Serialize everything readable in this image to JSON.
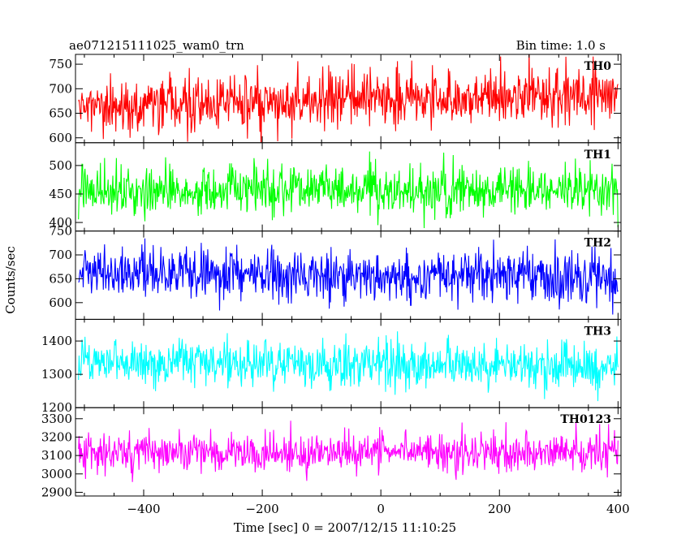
{
  "header": {
    "title": "ae071215111025_wam0_trn",
    "bin_time": "Bin time: 1.0 s"
  },
  "chart_data": {
    "type": "line",
    "xlabel": "Time [sec] 0 = 2007/12/15 11:10:25",
    "ylabel": "Counts/sec",
    "xlim": [
      -515,
      405
    ],
    "x_ticks": [
      -400,
      -200,
      0,
      200,
      400
    ],
    "x_tick_labels": [
      "−400",
      "−200",
      "0",
      "200",
      "400"
    ],
    "bin_seconds": 1.0,
    "x_start": -510,
    "x_end": 400,
    "panels": [
      {
        "name": "TH0",
        "color": "#ff0000",
        "ylim": [
          590,
          770
        ],
        "y_ticks": [
          600,
          650,
          700,
          750
        ],
        "y_tick_labels": [
          "600",
          "650",
          "700",
          "750"
        ],
        "approx_mean": {
          "start": 662,
          "end": 692
        },
        "approx_noise_sigma": 27
      },
      {
        "name": "TH1",
        "color": "#00ff00",
        "ylim": [
          385,
          540
        ],
        "y_ticks": [
          400,
          450,
          500
        ],
        "y_tick_labels": [
          "400",
          "450",
          "500"
        ],
        "approx_mean": {
          "start": 455,
          "end": 456
        },
        "approx_noise_sigma": 22
      },
      {
        "name": "TH2",
        "color": "#0000ff",
        "ylim": [
          565,
          750
        ],
        "y_ticks": [
          600,
          650,
          700,
          750
        ],
        "y_tick_labels": [
          "600",
          "650",
          "700",
          "750"
        ],
        "approx_mean": {
          "start": 662,
          "end": 652
        },
        "approx_noise_sigma": 27
      },
      {
        "name": "TH3",
        "color": "#00ffff",
        "ylim": [
          1200,
          1465
        ],
        "y_ticks": [
          1200,
          1300,
          1400
        ],
        "y_tick_labels": [
          "1200",
          "1300",
          "1400"
        ],
        "approx_mean": {
          "start": 1335,
          "end": 1325
        },
        "approx_noise_sigma": 36
      },
      {
        "name": "TH0123",
        "color": "#ff00ff",
        "ylim": [
          2880,
          3360
        ],
        "y_ticks": [
          2900,
          3000,
          3100,
          3200,
          3300
        ],
        "y_tick_labels": [
          "2900",
          "3000",
          "3100",
          "3200",
          "3300"
        ],
        "approx_mean": {
          "start": 3120,
          "end": 3110
        },
        "approx_noise_sigma": 55
      }
    ]
  }
}
